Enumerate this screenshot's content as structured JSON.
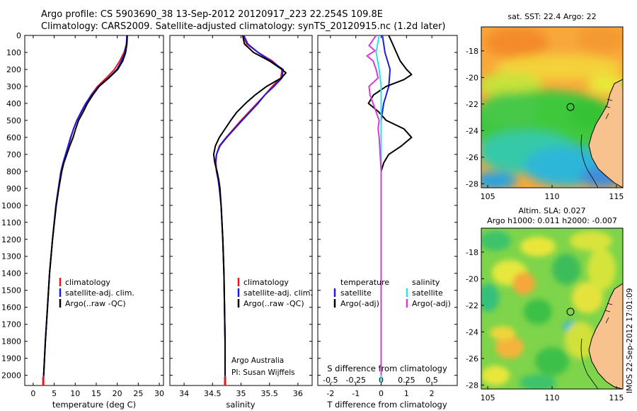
{
  "header": {
    "line1": "Argo profile: CS 5903690_38 13-Sep-2012 20120917_223 22.254S 109.8E",
    "line2": "Climatology: CARS2009. Satellite-adjusted climatology: synTS_20120915.nc (1.2d later)"
  },
  "colors": {
    "climatology": "#e8141c",
    "satellite": "#1a1ae6",
    "argo": "#000000",
    "argo_adj_salinity": "#d63bd6",
    "satellite_salinity": "#27e3ea",
    "land": "#f7c28e"
  },
  "chart_data": [
    {
      "type": "line",
      "panel": "temperature",
      "xlabel": "temperature (deg C)",
      "ylabel": "",
      "xlim": [
        -2,
        31
      ],
      "ylim": [
        2060,
        0
      ],
      "xticks": [
        "0",
        "5",
        "10",
        "15",
        "20",
        "25",
        "30"
      ],
      "yticks": [
        "0",
        "100",
        "200",
        "300",
        "400",
        "500",
        "600",
        "700",
        "800",
        "900",
        "1000",
        "1100",
        "1200",
        "1300",
        "1400",
        "1500",
        "1600",
        "1700",
        "1800",
        "1900",
        "2000"
      ],
      "legend": [
        "climatology",
        "satellite-adj. clim.",
        "Argo(..raw -QC)"
      ],
      "series": [
        {
          "name": "climatology",
          "depth": [
            0,
            50,
            100,
            150,
            200,
            250,
            300,
            350,
            400,
            450,
            500,
            550,
            600,
            650,
            700,
            750,
            800,
            900,
            1000,
            1200,
            1400,
            1600,
            1800,
            2000,
            2040
          ],
          "values": [
            22.3,
            22.2,
            21.6,
            20.6,
            19.3,
            17.4,
            15.3,
            13.8,
            12.6,
            11.5,
            10.4,
            9.6,
            9.0,
            8.4,
            7.8,
            7.2,
            6.6,
            6.0,
            5.4,
            4.6,
            3.9,
            3.4,
            2.9,
            2.5,
            2.4
          ]
        },
        {
          "name": "satellite-adj. clim.",
          "depth": [
            0,
            50,
            100,
            150,
            200,
            250,
            300,
            350,
            400,
            450,
            500,
            550,
            600,
            650,
            700,
            750,
            800,
            900,
            1000,
            1200,
            1400,
            1600,
            1800,
            2000,
            2040
          ],
          "values": [
            22.3,
            22.2,
            21.8,
            21.0,
            19.9,
            17.9,
            15.6,
            13.9,
            12.5,
            11.4,
            10.4,
            9.6,
            8.9,
            8.3,
            7.7,
            7.1,
            6.6,
            6.0,
            5.4,
            4.6,
            3.9,
            3.4,
            2.9,
            2.5,
            2.4
          ]
        },
        {
          "name": "Argo(..raw -QC)",
          "depth": [
            0,
            50,
            100,
            150,
            200,
            250,
            300,
            350,
            400,
            450,
            500,
            550,
            600,
            650,
            700,
            750,
            800,
            900,
            1000,
            1200,
            1400,
            1600,
            1800,
            2000
          ],
          "values": [
            22.4,
            22.3,
            22.0,
            21.3,
            20.1,
            18.0,
            15.7,
            14.2,
            12.9,
            11.9,
            10.8,
            10.1,
            9.5,
            8.7,
            8.0,
            7.3,
            6.8,
            6.1,
            5.5,
            4.6,
            3.9,
            3.4,
            2.9,
            2.5
          ]
        }
      ]
    },
    {
      "type": "line",
      "panel": "salinity",
      "xlabel": "salinity",
      "xlim": [
        33.75,
        36.25
      ],
      "ylim": [
        2060,
        0
      ],
      "xticks": [
        "34",
        "34.5",
        "35",
        "35.5",
        "36"
      ],
      "legend": [
        "climatology",
        "satellite-adj. clim.",
        "Argo(..raw -QC)"
      ],
      "annotations": [
        "Argo Australia",
        "PI: Susan Wijffels"
      ],
      "series": [
        {
          "name": "climatology",
          "depth": [
            0,
            50,
            100,
            150,
            200,
            250,
            300,
            350,
            400,
            500,
            600,
            650,
            700,
            750,
            800,
            850,
            900,
            1000,
            1200,
            1400,
            1600,
            1800,
            2000,
            2040
          ],
          "values": [
            35.03,
            35.1,
            35.3,
            35.55,
            35.72,
            35.7,
            35.55,
            35.42,
            35.28,
            35.0,
            34.74,
            34.62,
            34.57,
            34.56,
            34.57,
            34.6,
            34.62,
            34.65,
            34.68,
            34.7,
            34.71,
            34.72,
            34.72,
            34.72
          ]
        },
        {
          "name": "satellite-adj. clim.",
          "depth": [
            0,
            50,
            100,
            150,
            200,
            250,
            300,
            350,
            400,
            500,
            600,
            650,
            700,
            750,
            800,
            850,
            900,
            1000,
            1200,
            1400,
            1600,
            1800,
            2000,
            2040
          ],
          "values": [
            35.05,
            35.12,
            35.3,
            35.52,
            35.74,
            35.72,
            35.58,
            35.42,
            35.3,
            35.02,
            34.75,
            34.63,
            34.57,
            34.55,
            34.57,
            34.6,
            34.62,
            34.65,
            34.68,
            34.7,
            34.71,
            34.72,
            34.72,
            34.72
          ]
        },
        {
          "name": "Argo(..raw -QC)",
          "depth": [
            0,
            50,
            100,
            150,
            200,
            220,
            250,
            300,
            350,
            400,
            450,
            500,
            600,
            650,
            700,
            750,
            800,
            850,
            900,
            1000,
            1200,
            1400,
            1600,
            1800,
            2000
          ],
          "values": [
            35.03,
            35.06,
            35.22,
            35.5,
            35.72,
            35.79,
            35.71,
            35.45,
            35.25,
            35.08,
            34.93,
            34.82,
            34.62,
            34.55,
            34.52,
            34.54,
            34.58,
            34.61,
            34.63,
            34.65,
            34.68,
            34.7,
            34.71,
            34.72,
            34.72
          ]
        }
      ]
    },
    {
      "type": "line",
      "panel": "difference",
      "xlabel": "T difference from climatology",
      "x2label": "S difference from climatology",
      "xlim": [
        -2.5,
        3.0
      ],
      "x2lim": [
        -0.625,
        0.75
      ],
      "ylim": [
        2060,
        0
      ],
      "xticks": [
        "-2",
        "-1",
        "0",
        "1",
        "2"
      ],
      "x2ticks": [
        "-0.5",
        "-0.25",
        "0",
        "0.25",
        "0.5"
      ],
      "legend_left_title": "temperature",
      "legend_right_title": "salinity",
      "legend_left": [
        "satellite",
        "Argo(-adj)"
      ],
      "legend_right": [
        "satellite",
        "Argo(-adj)"
      ],
      "series": [
        {
          "name": "T satellite",
          "depth": [
            0,
            100,
            200,
            300,
            400,
            500,
            600,
            700,
            800,
            1000,
            1500,
            2040
          ],
          "values": [
            0.05,
            0.15,
            0.35,
            0.3,
            0.1,
            0.0,
            0.0,
            0.0,
            0.0,
            0.0,
            0.0,
            0.0
          ]
        },
        {
          "name": "T Argo(-adj)",
          "depth": [
            0,
            50,
            100,
            150,
            200,
            230,
            260,
            300,
            350,
            400,
            450,
            500,
            550,
            600,
            650,
            700,
            750,
            800,
            900,
            1000,
            1500,
            2000
          ],
          "values": [
            0.3,
            0.45,
            0.6,
            0.75,
            1.0,
            1.2,
            0.9,
            0.2,
            -0.3,
            -0.5,
            -0.1,
            0.2,
            0.9,
            1.2,
            0.8,
            0.3,
            0.1,
            0.0,
            0.0,
            0.0,
            0.0,
            0.0
          ]
        },
        {
          "name": "S satellite",
          "depth": [
            0,
            100,
            200,
            300,
            400,
            500,
            600,
            700,
            800,
            1000,
            1500,
            2040
          ],
          "values": [
            -0.02,
            -0.05,
            -0.02,
            0.0,
            0.0,
            0.0,
            0.0,
            0.0,
            0.0,
            0.0,
            0.0,
            0.0
          ]
        },
        {
          "name": "S Argo(-adj)",
          "depth": [
            0,
            60,
            90,
            120,
            150,
            200,
            250,
            300,
            350,
            400,
            450,
            500,
            550,
            600,
            700,
            800,
            900,
            1000,
            1500,
            2000
          ],
          "values": [
            -0.05,
            -0.12,
            -0.06,
            -0.14,
            -0.08,
            -0.05,
            -0.03,
            -0.12,
            -0.11,
            -0.08,
            -0.05,
            -0.02,
            -0.03,
            -0.02,
            -0.01,
            0.0,
            0.0,
            0.0,
            0.0,
            0.0
          ]
        }
      ]
    }
  ],
  "maps": {
    "sst": {
      "title": "sat. SST: 22.4  Argo: 22",
      "xticks": [
        "105",
        "110",
        "115"
      ],
      "yticks": [
        "-18",
        "-20",
        "-22",
        "-24",
        "-26",
        "-28"
      ]
    },
    "sla": {
      "title_line1": "Altim. SLA: 0.027",
      "title_line2": "Argo h1000: 0.011 h2000: -0.007",
      "xticks": [
        "105",
        "110",
        "115"
      ],
      "yticks": [
        "-18",
        "-20",
        "-22",
        "-24",
        "-26",
        "-28"
      ]
    }
  },
  "footer_stamp": "IMOS 22-Sep-2012 17:01:09"
}
